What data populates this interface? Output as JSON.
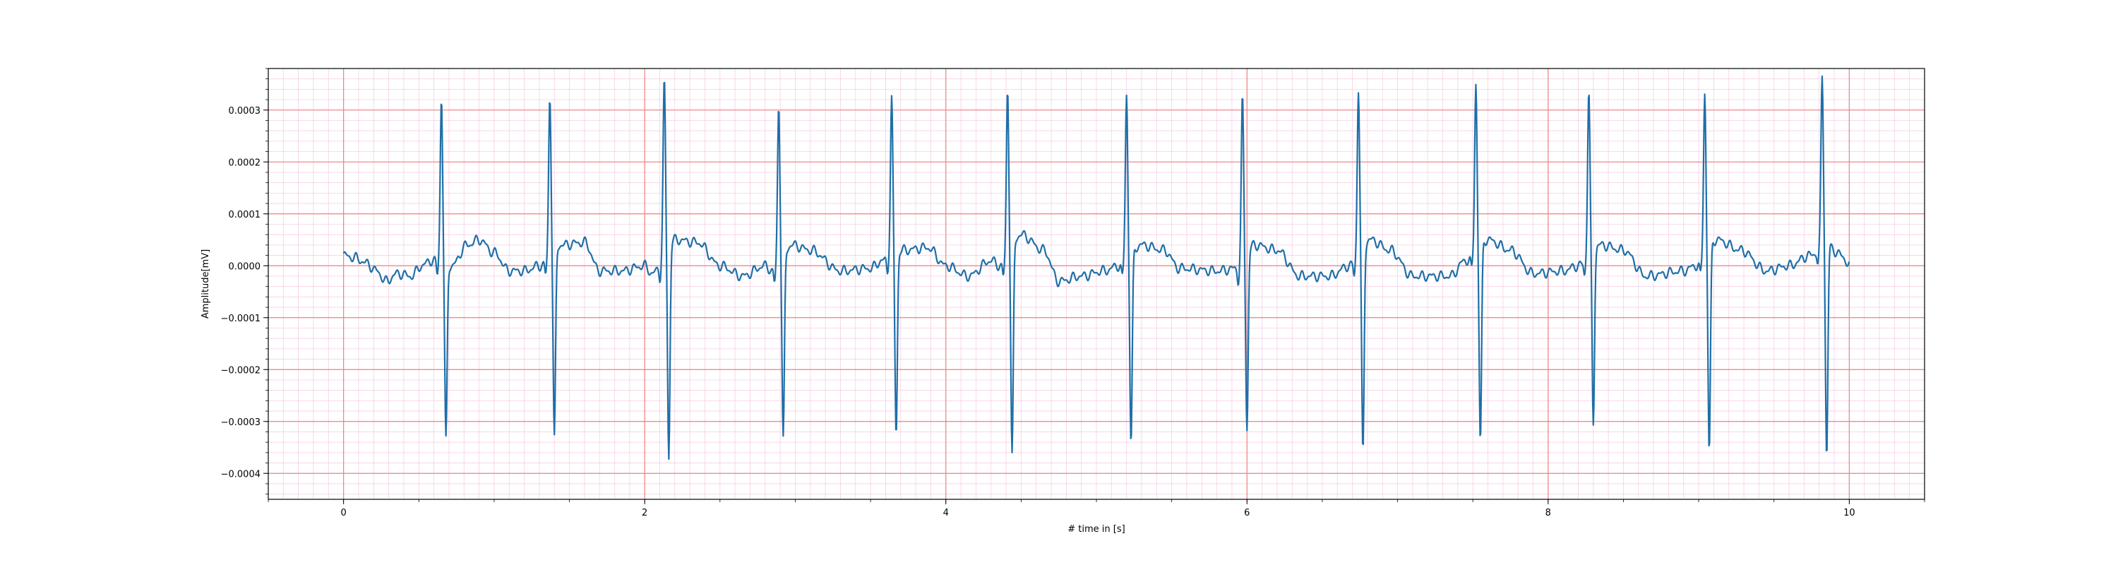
{
  "chart_data": {
    "type": "line",
    "title": "",
    "xlabel": "# time in [s]",
    "ylabel": "Amplitude[mV]",
    "xlim": [
      -0.5,
      10.5
    ],
    "ylim": [
      -0.00045,
      0.00038
    ],
    "xticks": [
      0,
      2,
      4,
      6,
      8,
      10
    ],
    "xtick_labels": [
      "0",
      "2",
      "4",
      "6",
      "8",
      "10"
    ],
    "yticks": [
      -0.0004,
      -0.0003,
      -0.0002,
      -0.0001,
      0.0,
      0.0001,
      0.0002,
      0.0003
    ],
    "ytick_labels": [
      "−0.0004",
      "−0.0003",
      "−0.0002",
      "−0.0001",
      "0.0000",
      "0.0001",
      "0.0002",
      "0.0003"
    ],
    "grid": {
      "major": true,
      "minor": true,
      "major_color": "#f08080",
      "minor_color": "#f6cfe6"
    },
    "series": [
      {
        "color": "#1f6fa8",
        "x_start": 0,
        "x_end": 10,
        "baseline": [
          [
            0.0,
            2e-05
          ],
          [
            0.08,
            1.5e-05
          ],
          [
            0.15,
            5e-06
          ],
          [
            0.22,
            -1e-05
          ],
          [
            0.28,
            -3e-05
          ],
          [
            0.36,
            -1.5e-05
          ],
          [
            0.45,
            -2e-05
          ],
          [
            0.52,
            0.0
          ],
          [
            0.58,
            1e-05
          ],
          [
            0.72,
            0.0
          ],
          [
            0.82,
            4e-05
          ],
          [
            0.9,
            5e-05
          ],
          [
            1.0,
            2.5e-05
          ],
          [
            1.1,
            -1e-05
          ],
          [
            1.2,
            -1e-05
          ],
          [
            1.3,
            0.0
          ],
          [
            1.45,
            4e-05
          ],
          [
            1.6,
            4.5e-05
          ],
          [
            1.7,
            -1e-05
          ],
          [
            1.85,
            -1e-05
          ],
          [
            2.0,
            0.0
          ],
          [
            2.05,
            -1.5e-05
          ],
          [
            2.2,
            5e-05
          ],
          [
            2.35,
            4.5e-05
          ],
          [
            2.5,
            0.0
          ],
          [
            2.65,
            -2e-05
          ],
          [
            2.8,
            0.0
          ],
          [
            2.85,
            -1e-05
          ],
          [
            2.98,
            4e-05
          ],
          [
            3.1,
            3e-05
          ],
          [
            3.3,
            -1e-05
          ],
          [
            3.5,
            -5e-06
          ],
          [
            3.58,
            1e-05
          ],
          [
            3.72,
            3e-05
          ],
          [
            3.88,
            3.5e-05
          ],
          [
            4.0,
            0.0
          ],
          [
            4.15,
            -2e-05
          ],
          [
            4.3,
            1e-05
          ],
          [
            4.36,
            0.0
          ],
          [
            4.5,
            6e-05
          ],
          [
            4.65,
            3e-05
          ],
          [
            4.75,
            -3e-05
          ],
          [
            4.9,
            -2e-05
          ],
          [
            5.05,
            -1e-05
          ],
          [
            5.15,
            0.0
          ],
          [
            5.3,
            4e-05
          ],
          [
            5.45,
            3e-05
          ],
          [
            5.55,
            -5e-06
          ],
          [
            5.8,
            -1e-05
          ],
          [
            5.94,
            -5e-06
          ],
          [
            6.05,
            4e-05
          ],
          [
            6.2,
            3e-05
          ],
          [
            6.35,
            -2e-05
          ],
          [
            6.55,
            -2e-05
          ],
          [
            6.68,
            0.0
          ],
          [
            6.82,
            5e-05
          ],
          [
            6.95,
            3e-05
          ],
          [
            7.1,
            -2e-05
          ],
          [
            7.35,
            -2e-05
          ],
          [
            7.45,
            1e-05
          ],
          [
            7.6,
            5e-05
          ],
          [
            7.75,
            3e-05
          ],
          [
            7.9,
            -1.5e-05
          ],
          [
            8.1,
            -1e-05
          ],
          [
            8.2,
            0.0
          ],
          [
            8.35,
            4e-05
          ],
          [
            8.5,
            3e-05
          ],
          [
            8.65,
            -2e-05
          ],
          [
            8.9,
            -1e-05
          ],
          [
            8.98,
            0.0
          ],
          [
            9.12,
            5e-05
          ],
          [
            9.28,
            3e-05
          ],
          [
            9.45,
            -1e-05
          ],
          [
            9.6,
            0.0
          ],
          [
            9.74,
            2e-05
          ],
          [
            9.85,
            4e-05
          ],
          [
            9.95,
            2e-05
          ],
          [
            10.0,
            0.0
          ]
        ],
        "r_peaks": [
          {
            "t": 0.65,
            "r": 0.00033,
            "s": -0.00034
          },
          {
            "t": 1.37,
            "r": 0.00032,
            "s": -0.000365
          },
          {
            "t": 2.13,
            "r": 0.000345,
            "s": -0.00041
          },
          {
            "t": 2.89,
            "r": 0.00032,
            "s": -0.000355
          },
          {
            "t": 3.64,
            "r": 0.000315,
            "s": -0.00035
          },
          {
            "t": 4.41,
            "r": 0.000335,
            "s": -0.000405
          },
          {
            "t": 5.2,
            "r": 0.00033,
            "s": -0.000365
          },
          {
            "t": 5.97,
            "r": 0.00033,
            "s": -0.000335
          },
          {
            "t": 6.74,
            "r": 0.00033,
            "s": -0.0004
          },
          {
            "t": 7.52,
            "r": 0.000335,
            "s": -0.00038
          },
          {
            "t": 8.27,
            "r": 0.00033,
            "s": -0.000335
          },
          {
            "t": 9.04,
            "r": 0.000325,
            "s": -0.000395
          },
          {
            "t": 9.82,
            "r": 0.00034,
            "s": -0.00041
          }
        ]
      }
    ]
  }
}
